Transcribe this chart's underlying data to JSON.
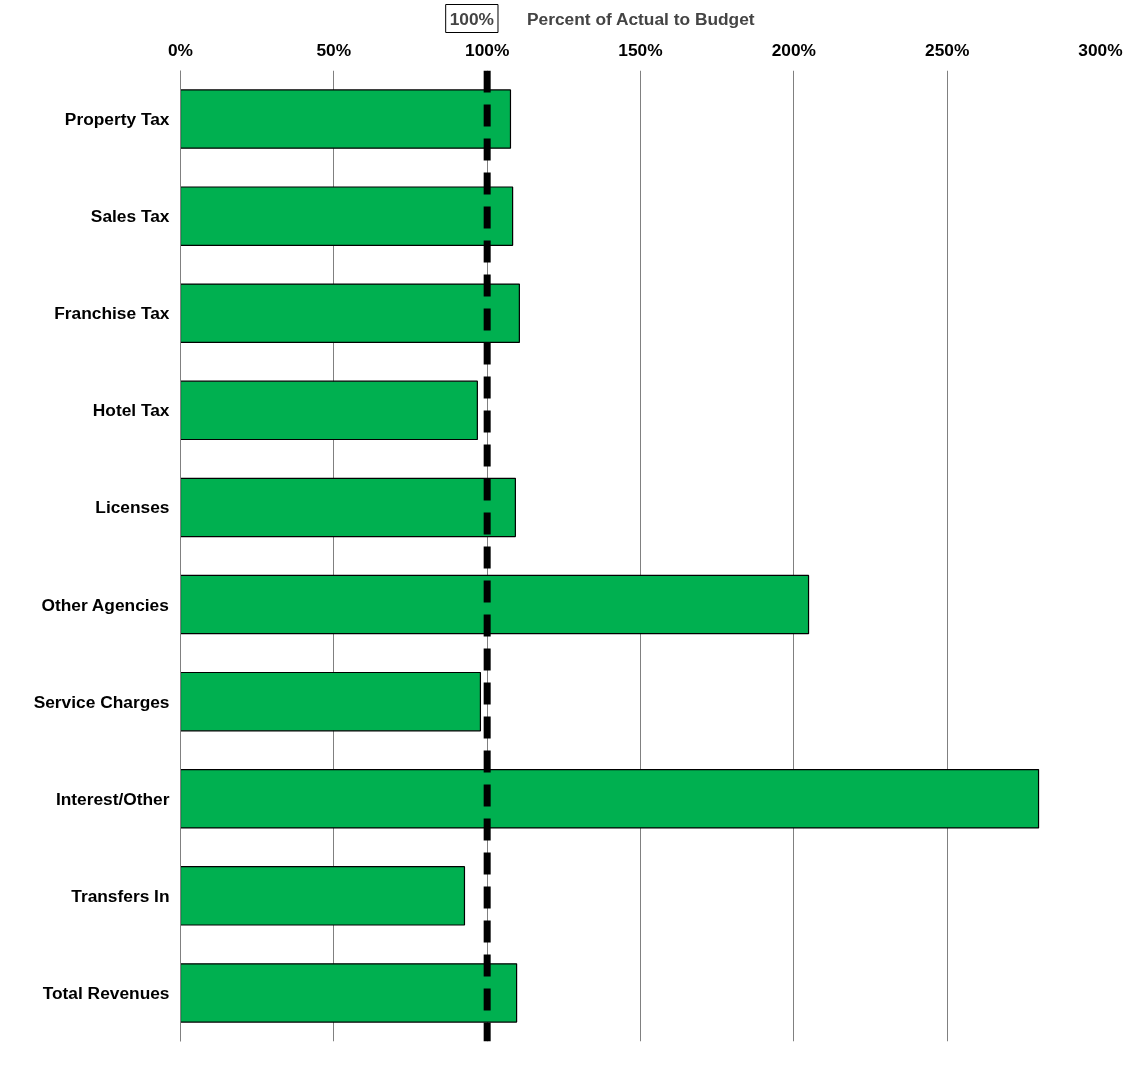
{
  "chart_data": {
    "type": "bar",
    "orientation": "horizontal",
    "title": "Percent of Actual to Budget",
    "categories": [
      "Property Tax",
      "Sales Tax",
      "Franchise Tax",
      "Hotel Tax",
      "Licenses",
      "Other Agencies",
      "Service Charges",
      "Interest/Other",
      "Transfers In",
      "Total Revenues"
    ],
    "values": [
      107.6,
      108.3,
      110.5,
      96.8,
      109.2,
      204.8,
      97.8,
      279.8,
      92.6,
      109.6
    ],
    "color": "#00b050",
    "xlim": [
      0,
      300
    ],
    "xticks": [
      {
        "value": 0,
        "label": "0%"
      },
      {
        "value": 50,
        "label": "50%"
      },
      {
        "value": 100,
        "label": "100%"
      },
      {
        "value": 150,
        "label": "150%"
      },
      {
        "value": 200,
        "label": "200%"
      },
      {
        "value": 250,
        "label": "250%"
      },
      {
        "value": 300,
        "label": "300%"
      }
    ],
    "grid": "x",
    "ref_lines": [
      {
        "axis": "x",
        "value": 100,
        "label": "100%",
        "color": "#000000",
        "line_style": "dashed"
      }
    ]
  }
}
